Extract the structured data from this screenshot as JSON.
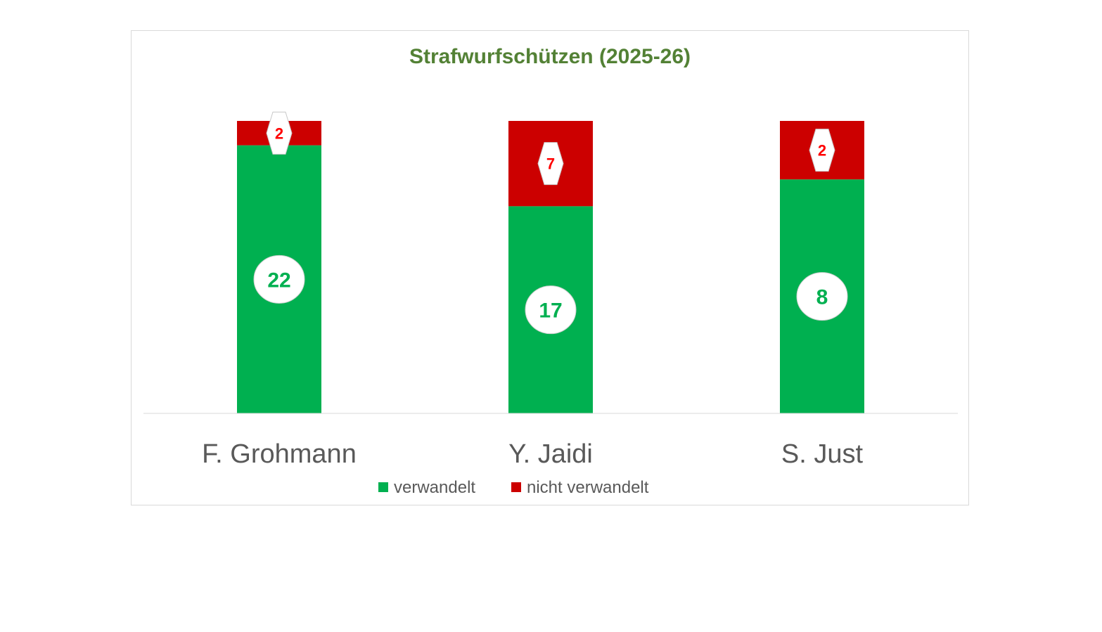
{
  "chart_data": {
    "type": "bar",
    "stacked": true,
    "title": "Strafwurfschützen (2025-26)",
    "categories": [
      "F. Grohmann",
      "Y. Jaidi",
      "S. Just"
    ],
    "series": [
      {
        "name": "verwandelt",
        "values": [
          22,
          17,
          8
        ],
        "color": "#00b050",
        "label_color": "#00b050",
        "label_shape": "circle"
      },
      {
        "name": "nicht verwandelt",
        "values": [
          2,
          7,
          2
        ],
        "color": "#cc0000",
        "label_color": "#ff0000",
        "label_shape": "hexagon"
      }
    ],
    "normalized_to_100_percent": true,
    "ylim": [
      0,
      100
    ],
    "xlabel": "",
    "ylabel": "",
    "grid": false,
    "legend_position": "bottom",
    "colors": {
      "title": "#538135",
      "axis_labels": "#595959",
      "baseline": "#d9d9d9"
    }
  }
}
